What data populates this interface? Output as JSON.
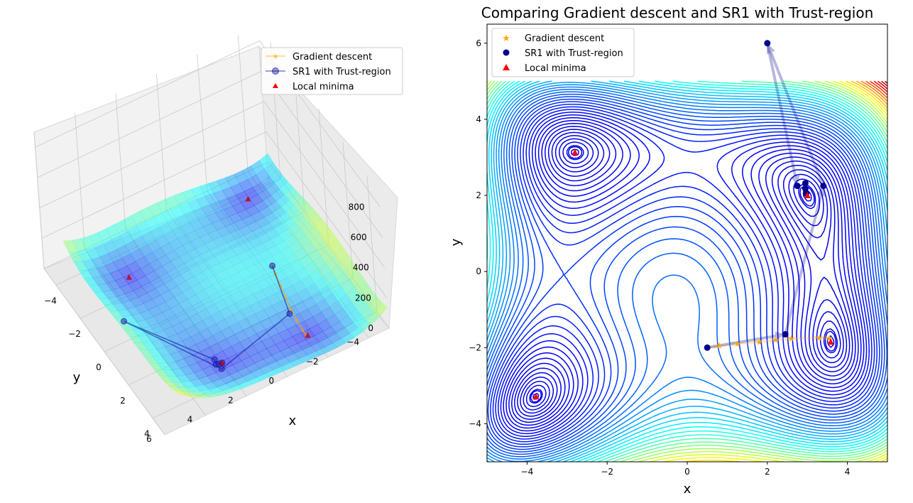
{
  "chart_data": [
    {
      "type": "surface3d",
      "title": "",
      "xlabel": "x",
      "ylabel": "y",
      "zlabel": "",
      "x_ticks": [
        "−4",
        "−2",
        "0",
        "2",
        "4"
      ],
      "y_ticks": [
        "−4",
        "−2",
        "0",
        "2",
        "4",
        "6"
      ],
      "z_ticks": [
        "0",
        "200",
        "400",
        "600",
        "800"
      ],
      "xlim": [
        -5,
        5
      ],
      "ylim": [
        -5,
        6
      ],
      "zlim": [
        0,
        900
      ],
      "surface_colormap": "jet",
      "grid": true,
      "legend_position": "top-right",
      "legend": [
        {
          "label": "Gradient descent",
          "color": "#ffa500",
          "marker": "star-line"
        },
        {
          "label": "SR1 with Trust-region",
          "color": "#00008b",
          "marker": "circle-line"
        },
        {
          "label": "Local minima",
          "color": "#ff0000",
          "marker": "triangle"
        }
      ],
      "series": [
        {
          "name": "Gradient descent",
          "points": [
            [
              0.5,
              -2.0,
              110
            ],
            [
              0.8,
              -1.95,
              95
            ],
            [
              1.3,
              -1.9,
              75
            ],
            [
              1.8,
              -1.85,
              55
            ],
            [
              2.3,
              -1.8,
              35
            ],
            [
              2.8,
              -1.78,
              18
            ],
            [
              3.3,
              -1.78,
              6
            ],
            [
              3.55,
              -1.8,
              2
            ]
          ]
        },
        {
          "name": "SR1 with Trust-region",
          "points": [
            [
              0.5,
              -2.0,
              110
            ],
            [
              2.45,
              -1.65,
              30
            ],
            [
              3.4,
              2.25,
              20
            ],
            [
              2.0,
              6.0,
              420
            ],
            [
              2.8,
              2.25,
              15
            ],
            [
              3.0,
              2.3,
              8
            ],
            [
              3.0,
              2.15,
              3
            ],
            [
              3.0,
              2.0,
              0
            ]
          ]
        },
        {
          "name": "Local minima",
          "points": [
            [
              3.0,
              2.0,
              0
            ],
            [
              -2.805,
              3.131,
              0
            ],
            [
              -3.779,
              -3.283,
              0
            ],
            [
              3.584,
              -1.848,
              0
            ]
          ]
        }
      ]
    },
    {
      "type": "contour",
      "title": "Comparing Gradient descent and SR1 with Trust-region",
      "xlabel": "x",
      "ylabel": "y",
      "xlim": [
        -5,
        5
      ],
      "ylim": [
        -5,
        6.5
      ],
      "x_ticks": [
        "−4",
        "−2",
        "0",
        "2",
        "4"
      ],
      "y_ticks": [
        "−4",
        "−2",
        "0",
        "2",
        "4",
        "6"
      ],
      "contour_colormap": "jet",
      "contour_domain": {
        "x": [
          -5,
          5
        ],
        "y": [
          -5,
          5
        ]
      },
      "legend_position": "top-left",
      "legend": [
        {
          "label": "Gradient descent",
          "color": "#ffa500",
          "marker": "star"
        },
        {
          "label": "SR1 with Trust-region",
          "color": "#00008b",
          "marker": "circle"
        },
        {
          "label": "Local minima",
          "color": "#ff0000",
          "marker": "triangle"
        }
      ],
      "series": [
        {
          "name": "Gradient descent",
          "x": [
            0.8,
            1.25,
            1.8,
            2.2,
            2.6,
            3.3,
            3.55
          ],
          "y": [
            -1.95,
            -1.9,
            -1.85,
            -1.8,
            -1.76,
            -1.74,
            -1.75
          ]
        },
        {
          "name": "SR1 with Trust-region",
          "x": [
            0.5,
            2.45,
            3.4,
            2.0,
            2.75,
            2.95,
            2.95,
            2.97
          ],
          "y": [
            -2.0,
            -1.65,
            2.25,
            6.0,
            2.25,
            2.32,
            2.18,
            2.05
          ]
        },
        {
          "name": "Local minima",
          "x": [
            3.0,
            -2.805,
            -3.779,
            3.584
          ],
          "y": [
            2.0,
            3.131,
            -3.283,
            -1.848
          ]
        }
      ],
      "sr1_arrows": [
        [
          0.5,
          -2.0,
          2.45,
          -1.65
        ],
        [
          2.45,
          -1.65,
          3.4,
          2.25
        ],
        [
          3.4,
          2.25,
          2.0,
          6.0
        ],
        [
          2.0,
          6.0,
          2.75,
          2.25
        ]
      ],
      "gd_arrows": [
        [
          0.5,
          -2.0,
          0.8,
          -1.95
        ],
        [
          0.8,
          -1.95,
          1.25,
          -1.9
        ],
        [
          1.25,
          -1.9,
          1.8,
          -1.85
        ],
        [
          1.8,
          -1.85,
          2.2,
          -1.8
        ],
        [
          2.2,
          -1.8,
          2.6,
          -1.76
        ],
        [
          2.6,
          -1.76,
          3.3,
          -1.74
        ],
        [
          3.3,
          -1.74,
          3.55,
          -1.75
        ]
      ]
    }
  ]
}
